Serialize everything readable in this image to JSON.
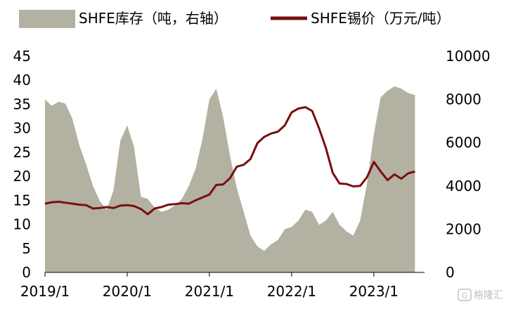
{
  "chart_data": {
    "type": "area",
    "colors": {
      "inventory": "#b3b1a1",
      "price": "#7a0e10",
      "watermark": "#b0b0b0"
    },
    "legend": {
      "placement": "top",
      "items": [
        {
          "key": "inventory",
          "label": "SHFE库存（吨，右轴）",
          "shape": "area"
        },
        {
          "key": "price",
          "label": "SHFE锡价（万元/吨）",
          "shape": "line"
        }
      ]
    },
    "left_axis": {
      "ticks": [
        "0",
        "5",
        "10",
        "15",
        "20",
        "25",
        "30",
        "35",
        "40",
        "45"
      ],
      "range": [
        0,
        45
      ]
    },
    "right_axis": {
      "ticks": [
        "0",
        "2000",
        "4000",
        "6000",
        "8000",
        "10000"
      ],
      "range": [
        0,
        10000
      ]
    },
    "x_axis": {
      "ticks": [
        "2019/1",
        "2020/1",
        "2021/1",
        "2022/1",
        "2023/1"
      ]
    },
    "series": [
      {
        "name": "SHFE库存（吨，右轴）",
        "axis": "right",
        "type": "area",
        "points": [
          [
            "2019-01",
            8000
          ],
          [
            "2019-02",
            7700
          ],
          [
            "2019-03",
            7900
          ],
          [
            "2019-04",
            7800
          ],
          [
            "2019-05",
            7100
          ],
          [
            "2019-06",
            5900
          ],
          [
            "2019-07",
            5000
          ],
          [
            "2019-08",
            4000
          ],
          [
            "2019-09",
            3300
          ],
          [
            "2019-10",
            2900
          ],
          [
            "2019-11",
            3800
          ],
          [
            "2019-12",
            6100
          ],
          [
            "2020-01",
            6800
          ],
          [
            "2020-02",
            5800
          ],
          [
            "2020-03",
            3500
          ],
          [
            "2020-04",
            3400
          ],
          [
            "2020-05",
            3000
          ],
          [
            "2020-06",
            2800
          ],
          [
            "2020-07",
            2900
          ],
          [
            "2020-08",
            3100
          ],
          [
            "2020-09",
            3400
          ],
          [
            "2020-10",
            4000
          ],
          [
            "2020-11",
            4800
          ],
          [
            "2020-12",
            6200
          ],
          [
            "2021-01",
            8000
          ],
          [
            "2021-02",
            8500
          ],
          [
            "2021-03",
            7200
          ],
          [
            "2021-04",
            5400
          ],
          [
            "2021-05",
            3900
          ],
          [
            "2021-06",
            2800
          ],
          [
            "2021-07",
            1700
          ],
          [
            "2021-08",
            1200
          ],
          [
            "2021-09",
            1000
          ],
          [
            "2021-10",
            1300
          ],
          [
            "2021-11",
            1500
          ],
          [
            "2021-12",
            2000
          ],
          [
            "2022-01",
            2100
          ],
          [
            "2022-02",
            2400
          ],
          [
            "2022-03",
            2900
          ],
          [
            "2022-04",
            2800
          ],
          [
            "2022-05",
            2200
          ],
          [
            "2022-06",
            2400
          ],
          [
            "2022-07",
            2800
          ],
          [
            "2022-08",
            2200
          ],
          [
            "2022-09",
            1900
          ],
          [
            "2022-10",
            1700
          ],
          [
            "2022-11",
            2400
          ],
          [
            "2022-12",
            4100
          ],
          [
            "2023-01",
            6400
          ],
          [
            "2023-02",
            8100
          ],
          [
            "2023-03",
            8400
          ],
          [
            "2023-04",
            8600
          ],
          [
            "2023-05",
            8500
          ],
          [
            "2023-06",
            8300
          ],
          [
            "2023-07",
            8200
          ]
        ]
      },
      {
        "name": "SHFE锡价（万元/吨）",
        "axis": "left",
        "type": "line",
        "points": [
          [
            "2019-01",
            14.3
          ],
          [
            "2019-02",
            14.6
          ],
          [
            "2019-03",
            14.7
          ],
          [
            "2019-04",
            14.5
          ],
          [
            "2019-05",
            14.3
          ],
          [
            "2019-06",
            14.1
          ],
          [
            "2019-07",
            14.0
          ],
          [
            "2019-08",
            13.3
          ],
          [
            "2019-09",
            13.4
          ],
          [
            "2019-10",
            13.6
          ],
          [
            "2019-11",
            13.4
          ],
          [
            "2019-12",
            13.9
          ],
          [
            "2020-01",
            14.0
          ],
          [
            "2020-02",
            13.8
          ],
          [
            "2020-03",
            13.2
          ],
          [
            "2020-04",
            12.1
          ],
          [
            "2020-05",
            13.3
          ],
          [
            "2020-06",
            13.6
          ],
          [
            "2020-07",
            14.1
          ],
          [
            "2020-08",
            14.2
          ],
          [
            "2020-09",
            14.4
          ],
          [
            "2020-10",
            14.3
          ],
          [
            "2020-11",
            15.0
          ],
          [
            "2020-12",
            15.6
          ],
          [
            "2021-01",
            16.2
          ],
          [
            "2021-02",
            18.2
          ],
          [
            "2021-03",
            18.3
          ],
          [
            "2021-04",
            19.6
          ],
          [
            "2021-05",
            22.0
          ],
          [
            "2021-06",
            22.4
          ],
          [
            "2021-07",
            23.6
          ],
          [
            "2021-08",
            26.9
          ],
          [
            "2021-09",
            28.2
          ],
          [
            "2021-10",
            28.9
          ],
          [
            "2021-11",
            29.3
          ],
          [
            "2021-12",
            30.6
          ],
          [
            "2022-01",
            33.3
          ],
          [
            "2022-02",
            34.1
          ],
          [
            "2022-03",
            34.4
          ],
          [
            "2022-04",
            33.6
          ],
          [
            "2022-05",
            30.0
          ],
          [
            "2022-06",
            25.9
          ],
          [
            "2022-07",
            20.7
          ],
          [
            "2022-08",
            18.5
          ],
          [
            "2022-09",
            18.4
          ],
          [
            "2022-10",
            17.9
          ],
          [
            "2022-11",
            18.0
          ],
          [
            "2022-12",
            19.8
          ],
          [
            "2023-01",
            23.0
          ],
          [
            "2023-02",
            21.0
          ],
          [
            "2023-03",
            19.2
          ],
          [
            "2023-04",
            20.4
          ],
          [
            "2023-05",
            19.5
          ],
          [
            "2023-06",
            20.6
          ],
          [
            "2023-07",
            21.0
          ]
        ]
      }
    ]
  },
  "watermark": {
    "text": "格隆汇"
  }
}
